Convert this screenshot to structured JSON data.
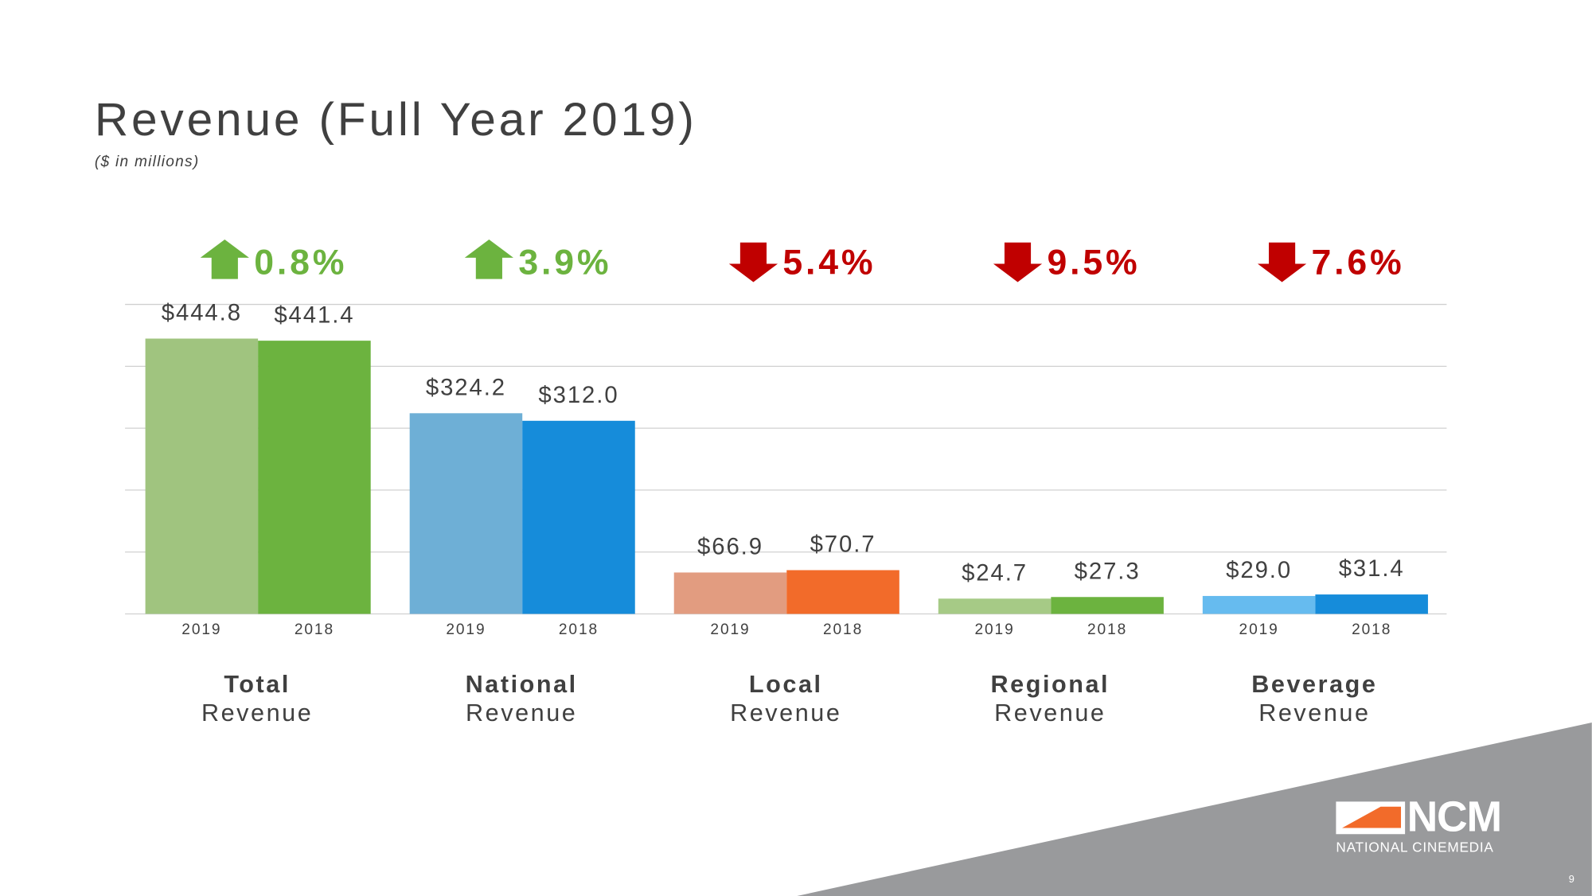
{
  "chart_data": {
    "type": "bar",
    "title": "Revenue (Full Year 2019)",
    "subtitle": "($ in millions)",
    "categories": [
      [
        "Total",
        "Revenue"
      ],
      [
        "National",
        "Revenue"
      ],
      [
        "Local",
        "Revenue"
      ],
      [
        "Regional",
        "Revenue"
      ],
      [
        "Beverage",
        "Revenue"
      ]
    ],
    "series": [
      {
        "name": "2019",
        "values": [
          444.8,
          324.2,
          66.9,
          24.7,
          29.0
        ],
        "value_labels": [
          "$444.8",
          "$324.2",
          "$66.9",
          "$24.7",
          "$29.0"
        ],
        "colors": [
          "#a0c47f",
          "#6eafd6",
          "#e29c80",
          "#a6ca86",
          "#66bbef"
        ]
      },
      {
        "name": "2018",
        "values": [
          441.4,
          312.0,
          70.7,
          27.3,
          31.4
        ],
        "value_labels": [
          "$441.4",
          "$312.0",
          "$70.7",
          "$27.3",
          "$31.4"
        ],
        "colors": [
          "#6cb33f",
          "#168cda",
          "#f26b2a",
          "#6cb33f",
          "#168cda"
        ]
      }
    ],
    "changes": [
      {
        "label": "0.8%",
        "direction": "up"
      },
      {
        "label": "3.9%",
        "direction": "up"
      },
      {
        "label": "5.4%",
        "direction": "down"
      },
      {
        "label": "9.5%",
        "direction": "down"
      },
      {
        "label": "7.6%",
        "direction": "down"
      }
    ],
    "change_colors": {
      "up": "#6cb33f",
      "down": "#c00000"
    },
    "ylim": [
      0,
      500
    ],
    "yticks": [
      0,
      100,
      200,
      300,
      400,
      500
    ],
    "grid": true
  },
  "footer": {
    "logo": "NCM",
    "logo_caption": "NATIONAL CINEMEDIA",
    "page_number": "9"
  }
}
